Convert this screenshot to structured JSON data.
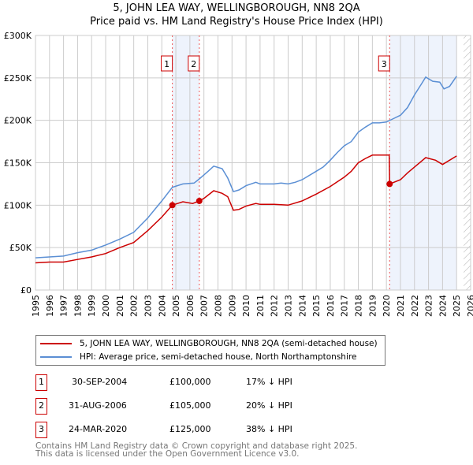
{
  "chart_data": {
    "type": "line",
    "title": "5, JOHN LEA WAY, WELLINGBOROUGH, NN8 2QA",
    "subtitle": "Price paid vs. HM Land Registry's House Price Index (HPI)",
    "xlim": [
      1995,
      2026
    ],
    "ylim": [
      0,
      300000
    ],
    "x_ticks": [
      "1995",
      "1996",
      "1997",
      "1998",
      "1999",
      "2000",
      "2001",
      "2002",
      "2003",
      "2004",
      "2005",
      "2006",
      "2007",
      "2008",
      "2009",
      "2010",
      "2011",
      "2012",
      "2013",
      "2014",
      "2015",
      "2016",
      "2017",
      "2018",
      "2019",
      "2020",
      "2021",
      "2022",
      "2023",
      "2024",
      "2025",
      "2026"
    ],
    "y_ticks": [
      {
        "v": 0,
        "l": "£0"
      },
      {
        "v": 50000,
        "l": "£50K"
      },
      {
        "v": 100000,
        "l": "£100K"
      },
      {
        "v": 150000,
        "l": "£150K"
      },
      {
        "v": 200000,
        "l": "£200K"
      },
      {
        "v": 250000,
        "l": "£250K"
      },
      {
        "v": 300000,
        "l": "£300K"
      }
    ],
    "grid": true,
    "series": [
      {
        "name": "5, JOHN LEA WAY, WELLINGBOROUGH, NN8 2QA (semi-detached house)",
        "color": "#cc0000",
        "x": [
          1995,
          1996,
          1997,
          1998,
          1999,
          2000,
          2001,
          2002,
          2003,
          2004,
          2004.75,
          2005.5,
          2006.2,
          2006.67,
          2007,
          2007.7,
          2008.3,
          2008.7,
          2009.1,
          2009.5,
          2010,
          2010.7,
          2011,
          2012,
          2013,
          2014,
          2015,
          2016,
          2017,
          2017.5,
          2018,
          2018.5,
          2019,
          2020.2,
          2020.23,
          2021,
          2021.5,
          2022,
          2022.8,
          2023.5,
          2024,
          2025
        ],
        "y": [
          32000,
          33000,
          33000,
          36000,
          39000,
          43000,
          50000,
          56000,
          70000,
          86000,
          100000,
          104000,
          102000,
          105000,
          108000,
          117000,
          114000,
          110000,
          94000,
          95000,
          99000,
          102000,
          101000,
          101000,
          100000,
          105000,
          113000,
          122000,
          133000,
          140000,
          150000,
          155000,
          159000,
          159000,
          125000,
          130000,
          138000,
          145000,
          156000,
          153000,
          148000,
          158000
        ]
      },
      {
        "name": "HPI: Average price, semi-detached house, North Northamptonshire",
        "color": "#5b8fd4",
        "x": [
          1995,
          1996,
          1997,
          1998,
          1999,
          2000,
          2001,
          2002,
          2003,
          2004,
          2004.75,
          2005.5,
          2006.3,
          2006.67,
          2007.3,
          2007.7,
          2008.3,
          2008.7,
          2009.1,
          2009.5,
          2010,
          2010.7,
          2011,
          2012,
          2012.5,
          2013,
          2013.5,
          2014,
          2015,
          2015.5,
          2016,
          2016.5,
          2017,
          2017.5,
          2018,
          2018.5,
          2019,
          2019.5,
          2020,
          2020.5,
          2021,
          2021.5,
          2022,
          2022.5,
          2022.8,
          2023.3,
          2023.8,
          2024.1,
          2024.5,
          2025
        ],
        "y": [
          38000,
          39000,
          40000,
          44000,
          47000,
          53000,
          60000,
          68000,
          85000,
          105000,
          121000,
          125000,
          126000,
          131000,
          140000,
          146000,
          143000,
          132000,
          116000,
          118000,
          123000,
          127000,
          125000,
          125000,
          126000,
          125000,
          127000,
          130000,
          140000,
          145000,
          153000,
          162000,
          170000,
          175000,
          186000,
          192000,
          197000,
          197000,
          198000,
          202000,
          206000,
          215000,
          230000,
          243000,
          251000,
          246000,
          245000,
          237000,
          240000,
          252000
        ]
      }
    ],
    "sales": [
      {
        "n": "1",
        "x": 2004.75,
        "y": 100000
      },
      {
        "n": "2",
        "x": 2006.67,
        "y": 105000
      },
      {
        "n": "3",
        "x": 2020.23,
        "y": 125000
      }
    ],
    "shaded": [
      [
        2004.75,
        2006.67
      ],
      [
        2020.23,
        2025
      ]
    ],
    "hatch_from": 2025.5
  },
  "legend": {
    "red": "5, JOHN LEA WAY, WELLINGBOROUGH, NN8 2QA (semi-detached house)",
    "blue": "HPI: Average price, semi-detached house, North Northamptonshire"
  },
  "table": [
    {
      "n": "1",
      "date": "30-SEP-2004",
      "price": "£100,000",
      "diff": "17% ↓ HPI"
    },
    {
      "n": "2",
      "date": "31-AUG-2006",
      "price": "£105,000",
      "diff": "20% ↓ HPI"
    },
    {
      "n": "3",
      "date": "24-MAR-2020",
      "price": "£125,000",
      "diff": "38% ↓ HPI"
    }
  ],
  "footer": {
    "line1": "Contains HM Land Registry data © Crown copyright and database right 2025.",
    "line2": "This data is licensed under the Open Government Licence v3.0."
  }
}
